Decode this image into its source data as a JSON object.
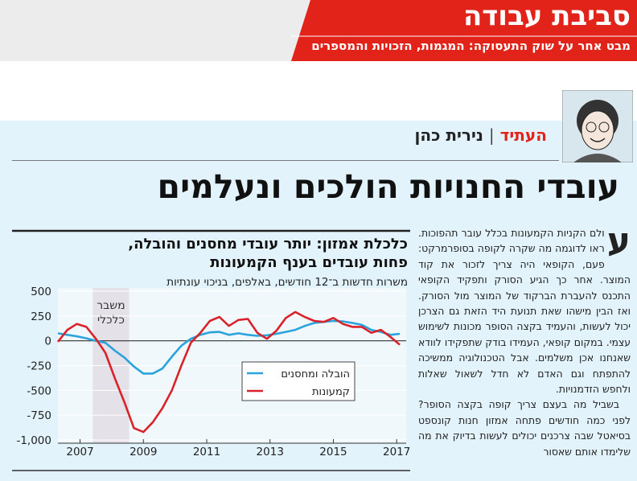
{
  "header": {
    "title": "סביבת עבודה",
    "subtitle": "מבט אחר על שוק התעסוקה: המגמות, הזכויות והמספרים"
  },
  "byline": {
    "section": "העתיד",
    "separator": "|",
    "author": "נירית כהן"
  },
  "headline": "עובדי החנויות הולכים ונעלמים",
  "article": {
    "drop_cap": "ע",
    "paragraphs": [
      "ולם הקניות הקמעונות בכלל עובר תהפוכות. ראו לדוגמה מה שקרה לקופה בסופרמרקט: פעם, הקופאי היה צריך לזכור את קוד המוצר. אחר כך הגיע הסורק ותפקיד הקופאי התכנס להעברת הברקוד של המוצר מול הסורק. ואז הבין מישהו שאת תנועת היד הזאת גם הצרכן יכול לעשות, והעמיד בקצה הסופר מכונות לשימוש עצמי. במקום קופאי, העמידו בודק שתפקידו לוודא שאנחנו אכן משלמים. אבל הטכנולוגיה ממשיכה להתפתח וגם האדם לא חדל לשאול שאלות ולחפש הזדמנויות.",
      "בשביל מה בעצם צריך קופה בקצה הסופר? לפני כמה חודשים פתחה אמזון חנות קונספט בסיאטל שבה צרכנים יכולים לעשות בדיוק את מה שלימדו אותם שאסור"
    ]
  },
  "chart_data": {
    "type": "line",
    "title": [
      "כלכלת אמזון: יותר עובדי מחסנים והובלה,",
      "פחות עובדים בענף הקמעונות"
    ],
    "subtitle": "משרות חדשות ב־12 חודשים, באלפים, בניכוי עונתיות",
    "x": [
      2006.3,
      2006.6,
      2006.9,
      2007.2,
      2007.5,
      2007.8,
      2008.1,
      2008.4,
      2008.7,
      2009.0,
      2009.3,
      2009.6,
      2009.9,
      2010.2,
      2010.5,
      2010.8,
      2011.1,
      2011.4,
      2011.7,
      2012.0,
      2012.3,
      2012.6,
      2012.9,
      2013.2,
      2013.5,
      2013.8,
      2014.1,
      2014.4,
      2014.7,
      2015.0,
      2015.3,
      2015.6,
      2015.9,
      2016.2,
      2016.5,
      2016.8,
      2017.1
    ],
    "series": [
      {
        "name": "הובלה ומחסנים",
        "color": "#2aa3dc",
        "values": [
          75,
          60,
          45,
          25,
          0,
          -20,
          -100,
          -170,
          -260,
          -330,
          -330,
          -280,
          -160,
          -50,
          20,
          60,
          85,
          90,
          60,
          75,
          60,
          50,
          55,
          70,
          90,
          110,
          150,
          180,
          190,
          200,
          195,
          180,
          160,
          110,
          90,
          60,
          70
        ]
      },
      {
        "name": "קמעונות",
        "color": "#d9232a",
        "values": [
          -10,
          110,
          170,
          140,
          20,
          -120,
          -380,
          -620,
          -880,
          -920,
          -820,
          -680,
          -500,
          -250,
          -20,
          80,
          200,
          240,
          150,
          210,
          220,
          80,
          20,
          100,
          230,
          290,
          240,
          200,
          190,
          230,
          170,
          140,
          140,
          80,
          110,
          40,
          -40
        ]
      }
    ],
    "xlim": [
      2006.3,
      2017.3
    ],
    "xticks": [
      2007,
      2009,
      2011,
      2013,
      2015,
      2017
    ],
    "ylim": [
      -1000,
      500
    ],
    "yticks": [
      500,
      250,
      0,
      -250,
      -500,
      -750,
      {
        "value": -1000,
        "label": "-1,000"
      }
    ],
    "grid": true,
    "legend": "center",
    "shade": {
      "x": [
        2007.4,
        2008.55
      ],
      "label": [
        "משבר",
        "כלכלי"
      ],
      "color": "#e4e1e8"
    }
  }
}
